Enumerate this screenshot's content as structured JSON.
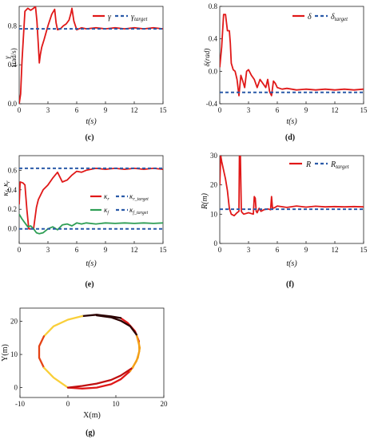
{
  "chart_data": [
    {
      "panel": "(c)",
      "type": "line",
      "xlabel": "t(s)",
      "ylabel": "γ (rad/s)",
      "xlim": [
        0,
        15
      ],
      "ylim": [
        0,
        1.0
      ],
      "xticks": [
        "0",
        "3",
        "6",
        "9",
        "12",
        "15"
      ],
      "yticks": [
        "0.0",
        "0.4",
        "0.8"
      ],
      "legend_position": "top-right",
      "series": [
        {
          "name": "γ",
          "color": "#e01818",
          "style": "solid",
          "x": [
            0,
            0.15,
            0.3,
            0.6,
            0.9,
            1.2,
            1.5,
            1.7,
            1.85,
            2.0,
            2.1,
            2.2,
            2.35,
            2.6,
            3.0,
            3.4,
            3.7,
            3.85,
            4.0,
            4.3,
            4.6,
            4.9,
            5.2,
            5.4,
            5.5,
            5.7,
            6.0,
            6.5,
            7.0,
            8.0,
            9.0,
            10.0,
            11.0,
            12.0,
            13.0,
            14.0,
            15.0
          ],
          "y": [
            0.0,
            0.1,
            0.45,
            0.95,
            0.98,
            0.96,
            0.98,
            1.0,
            0.85,
            0.6,
            0.42,
            0.5,
            0.58,
            0.66,
            0.8,
            0.92,
            0.97,
            0.83,
            0.76,
            0.77,
            0.8,
            0.82,
            0.86,
            0.93,
            0.98,
            0.85,
            0.76,
            0.78,
            0.77,
            0.78,
            0.77,
            0.78,
            0.77,
            0.78,
            0.77,
            0.78,
            0.77
          ]
        },
        {
          "name": "γtarget",
          "color": "#2a5aa8",
          "style": "dashed",
          "x": [
            0,
            15
          ],
          "y": [
            0.77,
            0.77
          ]
        }
      ],
      "legend": [
        "γ",
        "γtarget"
      ]
    },
    {
      "panel": "(d)",
      "type": "line",
      "xlabel": "t(s)",
      "ylabel": "δ(rad)",
      "xlim": [
        0,
        15
      ],
      "ylim": [
        -0.4,
        0.8
      ],
      "xticks": [
        "0",
        "3",
        "6",
        "9",
        "12",
        "15"
      ],
      "yticks": [
        "-0.4",
        "0.0",
        "0.4",
        "0.8"
      ],
      "legend_position": "top-right",
      "series": [
        {
          "name": "δ",
          "color": "#e01818",
          "style": "solid",
          "x": [
            0,
            0.2,
            0.4,
            0.6,
            0.8,
            1.0,
            1.1,
            1.2,
            1.4,
            1.6,
            1.8,
            2.0,
            2.2,
            2.4,
            2.6,
            2.8,
            3.0,
            3.3,
            3.6,
            3.9,
            4.2,
            4.5,
            4.8,
            5.0,
            5.2,
            5.4,
            5.6,
            5.8,
            6.0,
            6.5,
            7.0,
            8.0,
            9.0,
            10.0,
            11.0,
            12.0,
            13.0,
            14.0,
            15.0
          ],
          "y": [
            0.05,
            0.3,
            0.7,
            0.7,
            0.5,
            0.5,
            0.35,
            0.1,
            0.02,
            0.0,
            -0.1,
            -0.3,
            -0.05,
            -0.12,
            -0.2,
            0.0,
            0.02,
            -0.05,
            -0.1,
            -0.2,
            -0.1,
            -0.15,
            -0.2,
            -0.1,
            -0.25,
            -0.3,
            -0.12,
            -0.15,
            -0.2,
            -0.22,
            -0.21,
            -0.23,
            -0.22,
            -0.23,
            -0.22,
            -0.23,
            -0.22,
            -0.23,
            -0.22
          ]
        },
        {
          "name": "δtarget",
          "color": "#2a5aa8",
          "style": "dashed",
          "x": [
            0,
            15
          ],
          "y": [
            -0.26,
            -0.26
          ]
        }
      ],
      "legend": [
        "δ",
        "δtarget"
      ]
    },
    {
      "panel": "(e)",
      "type": "line",
      "xlabel": "t(s)",
      "ylabel": "κf, κr",
      "xlim": [
        0,
        15
      ],
      "ylim": [
        -0.15,
        0.75
      ],
      "xticks": [
        "0",
        "3",
        "6",
        "9",
        "12",
        "15"
      ],
      "yticks": [
        "0.0",
        "0.2",
        "0.4",
        "0.6"
      ],
      "legend_position": "center-right",
      "series": [
        {
          "name": "κr",
          "color": "#e01818",
          "style": "solid",
          "x": [
            0,
            0.1,
            0.4,
            0.6,
            0.8,
            1.0,
            1.5,
            1.8,
            2.0,
            2.5,
            3.0,
            3.5,
            4.0,
            4.5,
            5.0,
            5.5,
            6.0,
            6.5,
            7.0,
            8.0,
            9.0,
            10.0,
            11.0,
            12.0,
            13.0,
            14.0,
            15.0
          ],
          "y": [
            0.25,
            0.48,
            0.47,
            0.45,
            0.2,
            0.0,
            0.0,
            0.22,
            0.3,
            0.4,
            0.45,
            0.52,
            0.58,
            0.48,
            0.5,
            0.55,
            0.59,
            0.58,
            0.6,
            0.62,
            0.61,
            0.62,
            0.61,
            0.62,
            0.61,
            0.62,
            0.61
          ]
        },
        {
          "name": "κr_target",
          "color": "#2a5aa8",
          "style": "dashed",
          "x": [
            0,
            15
          ],
          "y": [
            0.62,
            0.62
          ]
        },
        {
          "name": "κf",
          "color": "#2e9e55",
          "style": "solid",
          "x": [
            0,
            0.3,
            0.6,
            0.9,
            1.2,
            1.5,
            1.8,
            2.1,
            2.5,
            3.0,
            3.5,
            4.0,
            4.5,
            5.0,
            5.5,
            6.0,
            6.5,
            7.0,
            8.0,
            9.0,
            10.0,
            11.0,
            12.0,
            13.0,
            14.0,
            15.0
          ],
          "y": [
            0.15,
            0.1,
            0.06,
            0.02,
            0.03,
            0.0,
            -0.04,
            -0.05,
            -0.04,
            0.0,
            0.02,
            -0.01,
            0.04,
            0.05,
            0.03,
            0.06,
            0.05,
            0.06,
            0.05,
            0.06,
            0.055,
            0.06,
            0.055,
            0.06,
            0.055,
            0.06
          ]
        },
        {
          "name": "κf_target",
          "color": "#2a5aa8",
          "style": "dashed",
          "x": [
            0,
            15
          ],
          "y": [
            0.0,
            0.0
          ]
        }
      ],
      "legend": [
        "κr",
        "κr_target",
        "κf",
        "κf_target"
      ]
    },
    {
      "panel": "(f)",
      "type": "line",
      "xlabel": "t(s)",
      "ylabel": "R(m)",
      "xlim": [
        0,
        15
      ],
      "ylim": [
        0,
        30
      ],
      "xticks": [
        "0",
        "3",
        "6",
        "9",
        "12",
        "15"
      ],
      "yticks": [
        "0",
        "10",
        "20",
        "30"
      ],
      "legend_position": "top-right",
      "series": [
        {
          "name": "R",
          "color": "#e01818",
          "style": "solid",
          "x": [
            0,
            0.1,
            0.2,
            0.4,
            0.6,
            0.8,
            1.0,
            1.2,
            1.5,
            1.8,
            2.0,
            2.05,
            2.15,
            2.25,
            2.35,
            2.5,
            3.0,
            3.5,
            3.6,
            3.7,
            3.8,
            3.9,
            4.1,
            4.3,
            4.6,
            5.0,
            5.3,
            5.4,
            5.5,
            5.7,
            6.0,
            7.0,
            8.0,
            9.0,
            10.0,
            11.0,
            12.0,
            13.0,
            14.0,
            15.0
          ],
          "y": [
            20,
            30,
            28,
            25,
            22,
            18,
            12,
            10,
            9.5,
            10.5,
            11,
            30,
            30,
            11,
            10.5,
            10,
            10.5,
            10,
            16,
            15.5,
            11,
            10.5,
            12,
            11,
            11.5,
            11.8,
            11.5,
            16,
            12,
            12.2,
            12.8,
            12.3,
            12.8,
            12.4,
            12.7,
            12.5,
            12.6,
            12.5,
            12.6,
            12.5
          ]
        },
        {
          "name": "Rtarget",
          "color": "#2a5aa8",
          "style": "dashed",
          "x": [
            0,
            15
          ],
          "y": [
            11.7,
            11.7
          ]
        }
      ],
      "legend": [
        "R",
        "Rtarget"
      ]
    },
    {
      "panel": "(g)",
      "type": "line",
      "xlabel": "X(m)",
      "ylabel": "Y(m)",
      "xlim": [
        -10,
        20
      ],
      "ylim": [
        -3,
        24
      ],
      "xticks": [
        "-10",
        "0",
        "10",
        "20"
      ],
      "yticks": [
        "0",
        "10",
        "20"
      ],
      "series": [
        {
          "name": "",
          "style": "trajectory",
          "segments": [
            {
              "x": [
                0,
                3,
                6,
                9,
                11,
                13
              ],
              "y": [
                0,
                -0.3,
                0,
                1,
                2.5,
                5
              ],
              "color": "#e01818"
            },
            {
              "x": [
                13,
                14.3,
                14.9,
                14.8
              ],
              "y": [
                5,
                8,
                11,
                14
              ],
              "color": "#f3a018"
            },
            {
              "x": [
                14.8,
                14.0,
                12.5,
                11
              ],
              "y": [
                14,
                17,
                19.5,
                21
              ],
              "color": "#e01818"
            },
            {
              "x": [
                11,
                9,
                6,
                3
              ],
              "y": [
                21,
                21.5,
                22,
                21.6
              ],
              "color": "#2a0000"
            },
            {
              "x": [
                3,
                0,
                -3,
                -5
              ],
              "y": [
                21.6,
                20.5,
                18.5,
                15.5
              ],
              "color": "#f9cf3a"
            },
            {
              "x": [
                -5,
                -6,
                -6,
                -5
              ],
              "y": [
                15.5,
                12.5,
                9,
                6
              ],
              "color": "#e44214"
            },
            {
              "x": [
                -5,
                -3,
                -1,
                0
              ],
              "y": [
                6,
                3,
                1,
                0
              ],
              "color": "#f9cf3a"
            },
            {
              "x": [
                0,
                3,
                6,
                9,
                11,
                13.5
              ],
              "y": [
                0,
                0.5,
                1.2,
                2.3,
                3.6,
                6
              ],
              "color": "#c01010"
            },
            {
              "x": [
                13.5,
                14.6,
                15.0,
                14.3
              ],
              "y": [
                6,
                9,
                12,
                16
              ],
              "color": "#f3a018"
            },
            {
              "x": [
                14.3,
                13,
                11,
                9,
                6
              ],
              "y": [
                16,
                18.5,
                20.2,
                21.2,
                21.8
              ],
              "color": "#2a0000"
            }
          ]
        }
      ]
    }
  ],
  "panels": {
    "c": {
      "label": "(c)",
      "ylabel_sym": "γ",
      "ylabel_unit": "(rad/s)",
      "xlabel": "t(s)",
      "leg1": "γ",
      "leg2_main": "γ",
      "leg2_sub": "target"
    },
    "d": {
      "label": "(d)",
      "ylabel": "δ(rad)",
      "xlabel": "t(s)",
      "leg1": "δ",
      "leg2_main": "δ",
      "leg2_sub": "target"
    },
    "e": {
      "label": "(e)",
      "ylabel_sym": "κ",
      "ylabel_a": "f",
      "ylabel_b": "r",
      "xlabel": "t(s)",
      "leg1": "κ",
      "leg1_sub": "r",
      "leg2": "κ",
      "leg2_sub": "r_target",
      "leg3": "κ",
      "leg3_sub": "f",
      "leg4": "κ",
      "leg4_sub": "f_target"
    },
    "f": {
      "label": "(f)",
      "ylabel": "R(m)",
      "xlabel": "t(s)",
      "leg1": "R",
      "leg2_main": "R",
      "leg2_sub": "target"
    },
    "g": {
      "label": "(g)",
      "ylabel": "Y(m)",
      "xlabel": "X(m)"
    }
  }
}
